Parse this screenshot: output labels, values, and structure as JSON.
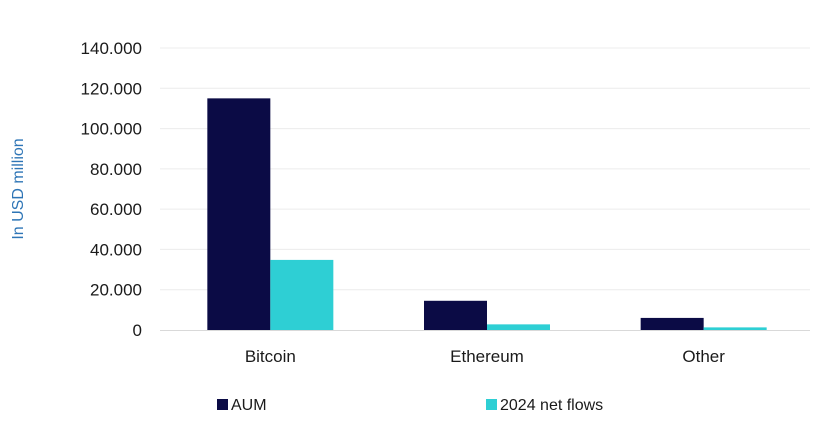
{
  "chart_data": {
    "type": "bar",
    "categories": [
      "Bitcoin",
      "Ethereum",
      "Other"
    ],
    "series": [
      {
        "name": "AUM",
        "values": [
          115000,
          14500,
          6000
        ],
        "color": "#0b0b45"
      },
      {
        "name": "2024 net flows",
        "values": [
          34800,
          2800,
          1300
        ],
        "color": "#2ecfd4"
      }
    ],
    "ylabel": "In USD million",
    "ylabel_color": "#2e75b6",
    "xlabel": "",
    "ylim": [
      0,
      140000
    ],
    "yticks": [
      0,
      20000,
      40000,
      60000,
      80000,
      100000,
      120000,
      140000
    ],
    "ytick_labels": [
      "0",
      "20.000",
      "40.000",
      "60.000",
      "80.000",
      "100.000",
      "120.000",
      "140.000"
    ],
    "grid": true,
    "legend_position": "bottom"
  }
}
